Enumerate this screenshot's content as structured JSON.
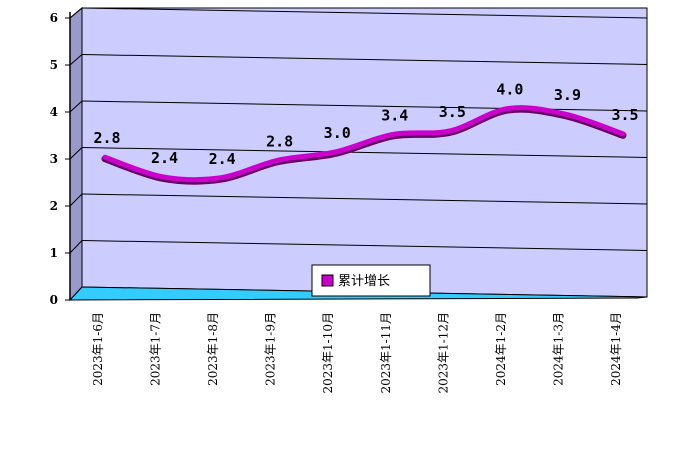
{
  "chart_data": {
    "type": "line",
    "categories": [
      "2023年1-6月",
      "2023年1-7月",
      "2023年1-8月",
      "2023年1-9月",
      "2023年1-10月",
      "2023年1-11月",
      "2023年1-12月",
      "2024年1-2月",
      "2024年1-3月",
      "2024年1-4月"
    ],
    "series": [
      {
        "name": "累计增长",
        "values": [
          2.8,
          2.4,
          2.4,
          2.8,
          3.0,
          3.4,
          3.5,
          4.0,
          3.9,
          3.5
        ],
        "labels": [
          "2.8",
          "2.4",
          "2.4",
          "2.8",
          "3.0",
          "3.4",
          "3.5",
          "4.0",
          "3.9",
          "3.5"
        ]
      }
    ],
    "yticks": [
      "0",
      "1",
      "2",
      "3",
      "4",
      "5",
      "6"
    ],
    "ylim": [
      0,
      6
    ],
    "grid": true,
    "legend": "bottom-center",
    "colors": {
      "line": "#cc00cc",
      "wall": "#ccccff",
      "floor": "#33ccff",
      "grid": "#000000"
    }
  }
}
